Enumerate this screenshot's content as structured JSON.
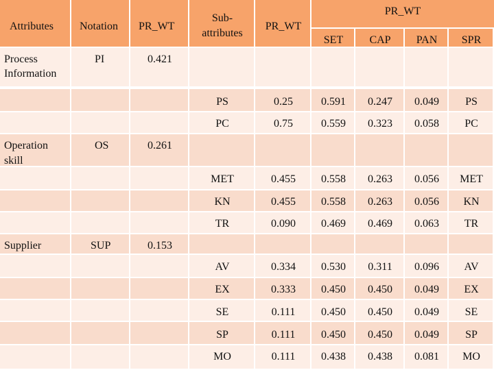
{
  "headers": {
    "attributes": "Attributes",
    "notation": "Notation",
    "pr_wt": "PR_WT",
    "sub_attributes_line1": "Sub-",
    "sub_attributes_line2": "attributes",
    "pr_wt_sub": "PR_WT",
    "pr_wt_group": "PR_WT",
    "set": "SET",
    "cap": "CAP",
    "pan": "PAN",
    "spr": "SPR"
  },
  "attributes": [
    {
      "line1": "Process",
      "line2": "Information",
      "notation": "PI",
      "weight": "0.421"
    },
    {
      "line1": "Operation",
      "line2": "skill",
      "notation": "OS",
      "weight": "0.261"
    },
    {
      "line1": "Supplier",
      "line2": "",
      "notation": "SUP",
      "weight": "0.153"
    }
  ],
  "subrows": [
    {
      "sub": "PS",
      "pr": "0.25",
      "set": "0.591",
      "cap": "0.247",
      "pan": "0.049",
      "spr": "PS"
    },
    {
      "sub": "PC",
      "pr": "0.75",
      "set": "0.559",
      "cap": "0.323",
      "pan": "0.058",
      "spr": "PC"
    },
    {
      "sub": "MET",
      "pr": "0.455",
      "set": "0.558",
      "cap": "0.263",
      "pan": "0.056",
      "spr": "MET"
    },
    {
      "sub": "KN",
      "pr": "0.455",
      "set": "0.558",
      "cap": "0.263",
      "pan": "0.056",
      "spr": "KN"
    },
    {
      "sub": "TR",
      "pr": "0.090",
      "set": "0.469",
      "cap": "0.469",
      "pan": "0.063",
      "spr": "TR"
    },
    {
      "sub": "AV",
      "pr": "0.334",
      "set": "0.530",
      "cap": "0.311",
      "pan": "0.096",
      "spr": "AV"
    },
    {
      "sub": "EX",
      "pr": "0.333",
      "set": "0.450",
      "cap": "0.450",
      "pan": "0.049",
      "spr": "EX"
    },
    {
      "sub": "SE",
      "pr": "0.111",
      "set": "0.450",
      "cap": "0.450",
      "pan": "0.049",
      "spr": "SE"
    },
    {
      "sub": "SP",
      "pr": "0.111",
      "set": "0.450",
      "cap": "0.450",
      "pan": "0.049",
      "spr": "SP"
    },
    {
      "sub": "MO",
      "pr": "0.111",
      "set": "0.438",
      "cap": "0.438",
      "pan": "0.081",
      "spr": "MO"
    }
  ],
  "colors": {
    "header": "#f7a36a",
    "row_light": "#fdeee6",
    "row_dark": "#f9dccc",
    "grid": "#ffffff"
  }
}
